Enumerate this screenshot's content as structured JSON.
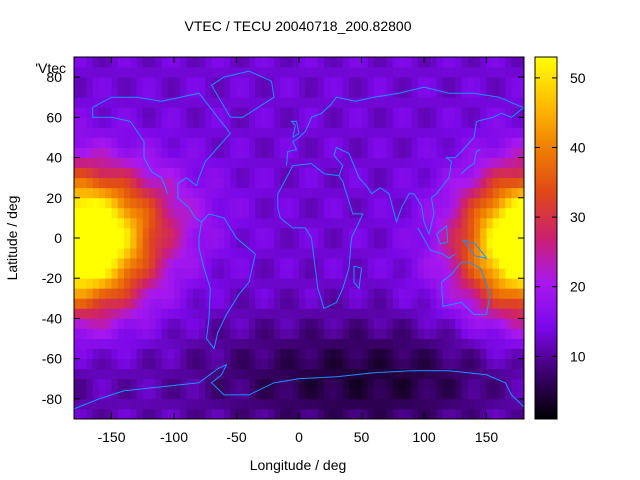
{
  "chart_data": {
    "type": "heatmap",
    "title": "VTEC / TECU 20040718_200.82800",
    "xlabel": "Longitude / deg",
    "ylabel": "Latitude / deg",
    "series_key": "'Vtec",
    "xlim": [
      -180,
      180
    ],
    "ylim": [
      -90,
      90
    ],
    "x_ticks": [
      -150,
      -100,
      -50,
      0,
      50,
      100,
      150
    ],
    "y_ticks": [
      -80,
      -60,
      -40,
      -20,
      0,
      20,
      40,
      60,
      80
    ],
    "x_tick_labels": [
      "-150",
      "-100",
      "-50",
      "0",
      "50",
      "100",
      "150"
    ],
    "y_tick_labels": [
      "-80",
      "-60",
      "-40",
      "-20",
      "0",
      "20",
      "40",
      "60",
      "80"
    ],
    "colorbar": {
      "range": [
        1,
        53
      ],
      "ticks": [
        10,
        20,
        30,
        40,
        50
      ],
      "tick_labels": [
        "10",
        "20",
        "30",
        "40",
        "50"
      ],
      "palette": [
        "#000000",
        "#3b006b",
        "#7b08e8",
        "#a818f0",
        "#cc2070",
        "#e04818",
        "#f08000",
        "#ffc000",
        "#ffff00"
      ]
    },
    "grid_lon_step": 5,
    "grid_lat_step": 5,
    "blobs": [
      {
        "lon": -175,
        "lat": -8,
        "slon": 40,
        "slat": 22,
        "v": 32
      },
      {
        "lon": -130,
        "lat": 12,
        "slon": 40,
        "slat": 18,
        "v": 10
      },
      {
        "lon": 180,
        "lat": 5,
        "slon": 32,
        "slat": 22,
        "v": 22
      },
      {
        "lon": 80,
        "lat": -70,
        "slon": 70,
        "slat": 20,
        "v": -7
      },
      {
        "lon": -30,
        "lat": -70,
        "slon": 70,
        "slat": 22,
        "v": -4
      }
    ],
    "base_value": 13,
    "coastlines": [
      [
        [
          -165,
          65
        ],
        [
          -150,
          70
        ],
        [
          -130,
          70
        ],
        [
          -110,
          68
        ],
        [
          -95,
          70
        ],
        [
          -80,
          72
        ],
        [
          -65,
          60
        ],
        [
          -55,
          52
        ],
        [
          -65,
          45
        ],
        [
          -75,
          38
        ],
        [
          -80,
          30
        ],
        [
          -82,
          26
        ],
        [
          -90,
          30
        ],
        [
          -97,
          27
        ],
        [
          -97,
          20
        ],
        [
          -88,
          15
        ],
        [
          -83,
          10
        ],
        [
          -78,
          8
        ],
        [
          -80,
          0
        ],
        [
          -80,
          -5
        ],
        [
          -76,
          -15
        ],
        [
          -71,
          -25
        ],
        [
          -72,
          -40
        ],
        [
          -74,
          -50
        ],
        [
          -68,
          -55
        ],
        [
          -65,
          -47
        ],
        [
          -58,
          -38
        ],
        [
          -48,
          -28
        ],
        [
          -40,
          -22
        ],
        [
          -35,
          -8
        ],
        [
          -50,
          0
        ],
        [
          -60,
          10
        ],
        [
          -72,
          12
        ],
        [
          -78,
          8
        ]
      ],
      [
        [
          -105,
          22
        ],
        [
          -110,
          30
        ],
        [
          -118,
          33
        ],
        [
          -124,
          40
        ],
        [
          -124,
          48
        ],
        [
          -135,
          58
        ],
        [
          -150,
          60
        ],
        [
          -165,
          60
        ],
        [
          -165,
          65
        ]
      ],
      [
        [
          -17,
          15
        ],
        [
          -17,
          22
        ],
        [
          -10,
          30
        ],
        [
          -5,
          36
        ],
        [
          10,
          37
        ],
        [
          20,
          32
        ],
        [
          32,
          31
        ],
        [
          35,
          28
        ],
        [
          43,
          12
        ],
        [
          51,
          12
        ],
        [
          42,
          0
        ],
        [
          40,
          -15
        ],
        [
          35,
          -25
        ],
        [
          30,
          -32
        ],
        [
          20,
          -35
        ],
        [
          15,
          -25
        ],
        [
          12,
          -10
        ],
        [
          10,
          0
        ],
        [
          5,
          5
        ],
        [
          -5,
          5
        ],
        [
          -15,
          10
        ],
        [
          -17,
          15
        ]
      ],
      [
        [
          -10,
          36
        ],
        [
          -9,
          43
        ],
        [
          -2,
          44
        ],
        [
          -5,
          48
        ],
        [
          0,
          50
        ],
        [
          5,
          53
        ],
        [
          8,
          57
        ],
        [
          10,
          60
        ],
        [
          18,
          62
        ],
        [
          25,
          66
        ],
        [
          30,
          70
        ],
        [
          45,
          68
        ],
        [
          60,
          70
        ],
        [
          80,
          72
        ],
        [
          100,
          75
        ],
        [
          120,
          72
        ],
        [
          140,
          72
        ],
        [
          160,
          70
        ],
        [
          175,
          66
        ],
        [
          180,
          65
        ]
      ],
      [
        [
          32,
          31
        ],
        [
          35,
          36
        ],
        [
          28,
          41
        ],
        [
          30,
          45
        ],
        [
          40,
          42
        ],
        [
          48,
          30
        ],
        [
          55,
          25
        ],
        [
          58,
          22
        ],
        [
          65,
          25
        ],
        [
          72,
          22
        ],
        [
          78,
          8
        ],
        [
          82,
          15
        ],
        [
          88,
          22
        ],
        [
          92,
          22
        ],
        [
          98,
          16
        ],
        [
          100,
          8
        ],
        [
          104,
          2
        ],
        [
          108,
          12
        ],
        [
          106,
          20
        ],
        [
          110,
          22
        ],
        [
          120,
          30
        ],
        [
          122,
          38
        ],
        [
          118,
          40
        ],
        [
          125,
          40
        ],
        [
          130,
          43
        ],
        [
          140,
          50
        ],
        [
          142,
          58
        ],
        [
          155,
          60
        ],
        [
          162,
          62
        ],
        [
          170,
          60
        ],
        [
          180,
          65
        ]
      ],
      [
        [
          114,
          -22
        ],
        [
          115,
          -34
        ],
        [
          130,
          -32
        ],
        [
          140,
          -38
        ],
        [
          150,
          -38
        ],
        [
          153,
          -28
        ],
        [
          145,
          -15
        ],
        [
          136,
          -12
        ],
        [
          130,
          -12
        ],
        [
          122,
          -18
        ],
        [
          114,
          -22
        ]
      ],
      [
        [
          -180,
          -85
        ],
        [
          -160,
          -80
        ],
        [
          -140,
          -76
        ],
        [
          -110,
          -74
        ],
        [
          -80,
          -72
        ],
        [
          -65,
          -65
        ],
        [
          -58,
          -63
        ],
        [
          -62,
          -68
        ],
        [
          -70,
          -72
        ],
        [
          -60,
          -78
        ],
        [
          -40,
          -78
        ],
        [
          -20,
          -72
        ],
        [
          0,
          -70
        ],
        [
          30,
          -69
        ],
        [
          60,
          -67
        ],
        [
          90,
          -66
        ],
        [
          120,
          -66
        ],
        [
          150,
          -68
        ],
        [
          165,
          -72
        ],
        [
          170,
          -78
        ],
        [
          180,
          -84
        ]
      ],
      [
        [
          -55,
          60
        ],
        [
          -45,
          60
        ],
        [
          -20,
          70
        ],
        [
          -22,
          78
        ],
        [
          -40,
          83
        ],
        [
          -60,
          80
        ],
        [
          -70,
          76
        ],
        [
          -55,
          60
        ]
      ],
      [
        [
          95,
          5
        ],
        [
          105,
          -6
        ],
        [
          115,
          -8
        ],
        [
          120,
          -10
        ],
        [
          125,
          -8
        ]
      ],
      [
        [
          110,
          2
        ],
        [
          118,
          6
        ],
        [
          119,
          -2
        ],
        [
          113,
          -3
        ],
        [
          110,
          2
        ]
      ],
      [
        [
          131,
          -1
        ],
        [
          141,
          -3
        ],
        [
          150,
          -10
        ],
        [
          141,
          -9
        ],
        [
          131,
          -1
        ]
      ],
      [
        [
          130,
          32
        ],
        [
          135,
          35
        ],
        [
          140,
          37
        ],
        [
          142,
          43
        ],
        [
          145,
          44
        ]
      ],
      [
        [
          44,
          -14
        ],
        [
          50,
          -15
        ],
        [
          48,
          -25
        ],
        [
          44,
          -22
        ],
        [
          44,
          -14
        ]
      ],
      [
        [
          -5,
          50
        ],
        [
          -3,
          56
        ],
        [
          -6,
          58
        ],
        [
          -2,
          58
        ],
        [
          0,
          52
        ],
        [
          -5,
          50
        ]
      ]
    ]
  }
}
